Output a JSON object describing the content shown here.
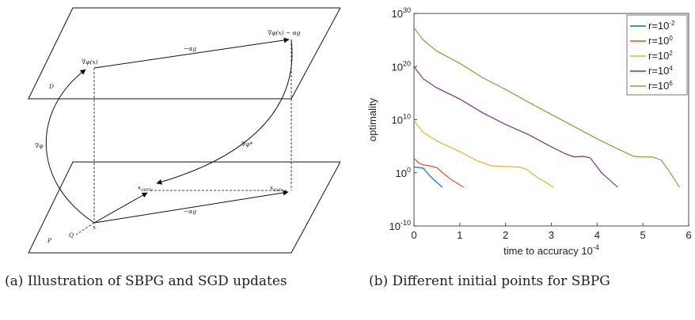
{
  "diagram": {
    "planes": {
      "top": "D",
      "bottom": "P"
    },
    "labels": {
      "grad_phi_x": "∇φ(x)",
      "grad_phi_x_minus": "∇φ(x) − αg",
      "grad_phi": "∇φ",
      "grad_phi_star": "∇φ*",
      "step_top": "−αg",
      "step_bottom": "−αg",
      "x_sbpg": "x",
      "x_sbpg_sub": "SBPG",
      "x_sgd": "x",
      "x_sgd_sub": "SGD",
      "x": "x",
      "q": "Q"
    }
  },
  "chart_data": {
    "type": "line",
    "xlabel": "time to accuracy 10",
    "xlabel_sup": "-4",
    "ylabel": "optimality",
    "xlim": [
      0,
      6
    ],
    "ylim_exp": [
      -10,
      30
    ],
    "yscale": "log",
    "x_ticks": [
      "0",
      "1",
      "2",
      "3",
      "4",
      "5",
      "6"
    ],
    "y_ticks": [
      {
        "exp": 30,
        "base": "10",
        "sup": "30"
      },
      {
        "exp": 20,
        "base": "10",
        "sup": "20"
      },
      {
        "exp": 10,
        "base": "10",
        "sup": "10"
      },
      {
        "exp": 0,
        "base": "10",
        "sup": "0"
      },
      {
        "exp": -10,
        "base": "10",
        "sup": "-10"
      }
    ],
    "legend_position": "top-right",
    "series": [
      {
        "name": "r=10",
        "sup": "-2",
        "color": "#0072BD",
        "points": [
          [
            0,
            1.1
          ],
          [
            0.1,
            1.0
          ],
          [
            0.2,
            0.9
          ],
          [
            0.25,
            0.4
          ],
          [
            0.35,
            -0.6
          ],
          [
            0.5,
            -1.8
          ],
          [
            0.62,
            -2.7
          ]
        ]
      },
      {
        "name": "r=10",
        "sup": "0",
        "color": "#D95319",
        "points": [
          [
            0,
            2.7
          ],
          [
            0.1,
            1.9
          ],
          [
            0.2,
            1.5
          ],
          [
            0.35,
            1.3
          ],
          [
            0.5,
            1.0
          ],
          [
            0.6,
            0.2
          ],
          [
            0.8,
            -1.2
          ],
          [
            1.08,
            -2.7
          ]
        ]
      },
      {
        "name": "r=10",
        "sup": "2",
        "color": "#EDB120",
        "points": [
          [
            0,
            9.8
          ],
          [
            0.2,
            7.6
          ],
          [
            0.5,
            6.0
          ],
          [
            1.0,
            4.0
          ],
          [
            1.4,
            2.2
          ],
          [
            1.7,
            1.3
          ],
          [
            2.0,
            1.2
          ],
          [
            2.3,
            1.1
          ],
          [
            2.45,
            0.7
          ],
          [
            2.7,
            -0.9
          ],
          [
            3.05,
            -2.7
          ]
        ]
      },
      {
        "name": "r=10",
        "sup": "4",
        "color": "#7E2F8E",
        "points": [
          [
            0,
            20.0
          ],
          [
            0.2,
            17.7
          ],
          [
            0.5,
            16.0
          ],
          [
            1.0,
            13.9
          ],
          [
            1.5,
            11.3
          ],
          [
            2.0,
            9.1
          ],
          [
            2.5,
            7.2
          ],
          [
            3.0,
            4.9
          ],
          [
            3.3,
            3.6
          ],
          [
            3.5,
            3.0
          ],
          [
            3.7,
            3.1
          ],
          [
            3.85,
            2.8
          ],
          [
            4.1,
            0.0
          ],
          [
            4.45,
            -2.7
          ]
        ]
      },
      {
        "name": "r=10",
        "sup": "6",
        "color": "#77AC30",
        "points": [
          [
            0,
            27.3
          ],
          [
            0.2,
            25.0
          ],
          [
            0.5,
            22.9
          ],
          [
            1.0,
            20.6
          ],
          [
            1.5,
            17.9
          ],
          [
            2.0,
            15.7
          ],
          [
            2.5,
            13.3
          ],
          [
            3.0,
            11.0
          ],
          [
            3.5,
            8.7
          ],
          [
            4.0,
            6.4
          ],
          [
            4.5,
            4.3
          ],
          [
            4.8,
            3.1
          ],
          [
            5.0,
            3.0
          ],
          [
            5.2,
            3.0
          ],
          [
            5.4,
            2.4
          ],
          [
            5.6,
            0.0
          ],
          [
            5.8,
            -2.7
          ]
        ]
      }
    ]
  },
  "captions": {
    "left": "(a) Illustration of SBPG and SGD updates",
    "right": "(b) Different initial points for SBPG"
  }
}
